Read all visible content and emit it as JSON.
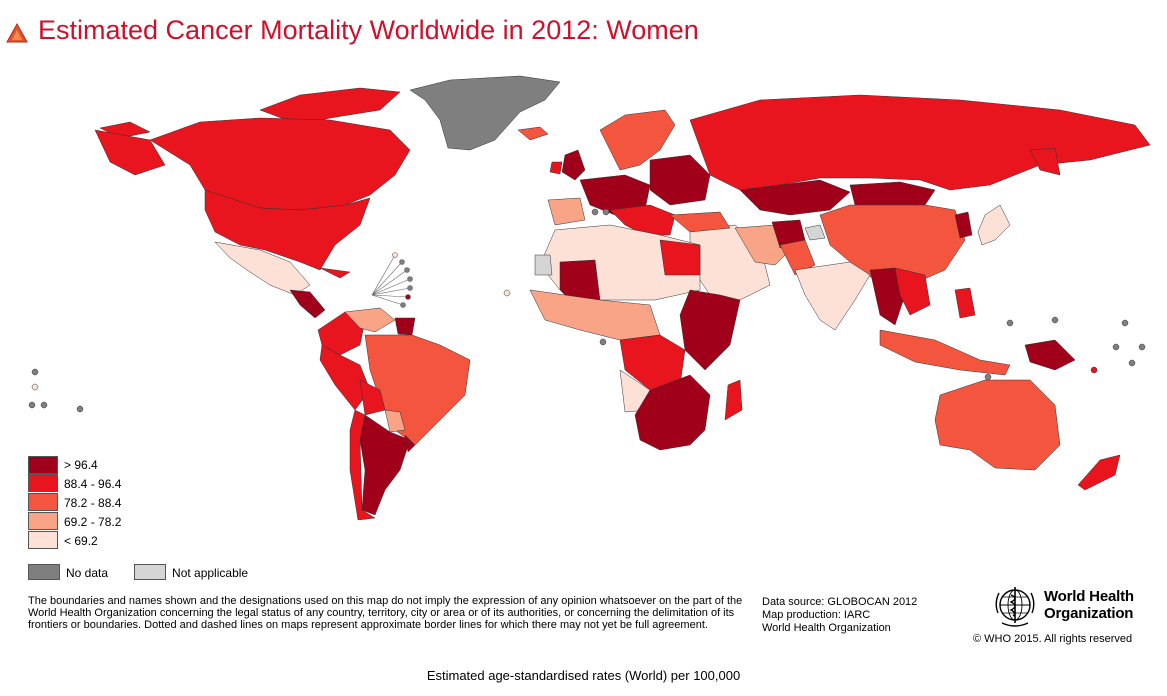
{
  "title": "Estimated Cancer Mortality Worldwide in 2012: Women",
  "colors": {
    "title": "#d0102a",
    "class_1": "#a1001a",
    "class_2": "#e8141e",
    "class_3": "#f4553f",
    "class_4": "#f9a487",
    "class_5": "#fde0d6",
    "no_data": "#7f7f7f",
    "not_applicable": "#d5d5d5"
  },
  "legend": {
    "classes": [
      {
        "label": ">  96.4",
        "color": "#a1001a"
      },
      {
        "label": "88.4  -  96.4",
        "color": "#e8141e"
      },
      {
        "label": "78.2  -  88.4",
        "color": "#f4553f"
      },
      {
        "label": "69.2  -  78.2",
        "color": "#f9a487"
      },
      {
        "label": "<  69.2",
        "color": "#fde0d6"
      }
    ],
    "no_data": "No data",
    "not_applicable": "Not applicable"
  },
  "disclaimer": "The boundaries and names shown and the designations used on this map do not imply the expression of any opinion whatsoever on the part of the World Health Organization concerning the legal status of any country, territory, city or area or of its authorities, or concerning the delimitation of its frontiers or boundaries. Dotted and dashed lines on maps represent approximate border lines for which there may not yet be full agreement.",
  "source": {
    "line1": "Data source: GLOBOCAN 2012",
    "line2": "Map production: IARC",
    "line3": "World Health Organization"
  },
  "who": {
    "name_line1": "World Health",
    "name_line2": "Organization",
    "copyright": "© WHO 2015. All rights reserved"
  },
  "footer": "Estimated age-standardised rates (World) per 100,000"
}
